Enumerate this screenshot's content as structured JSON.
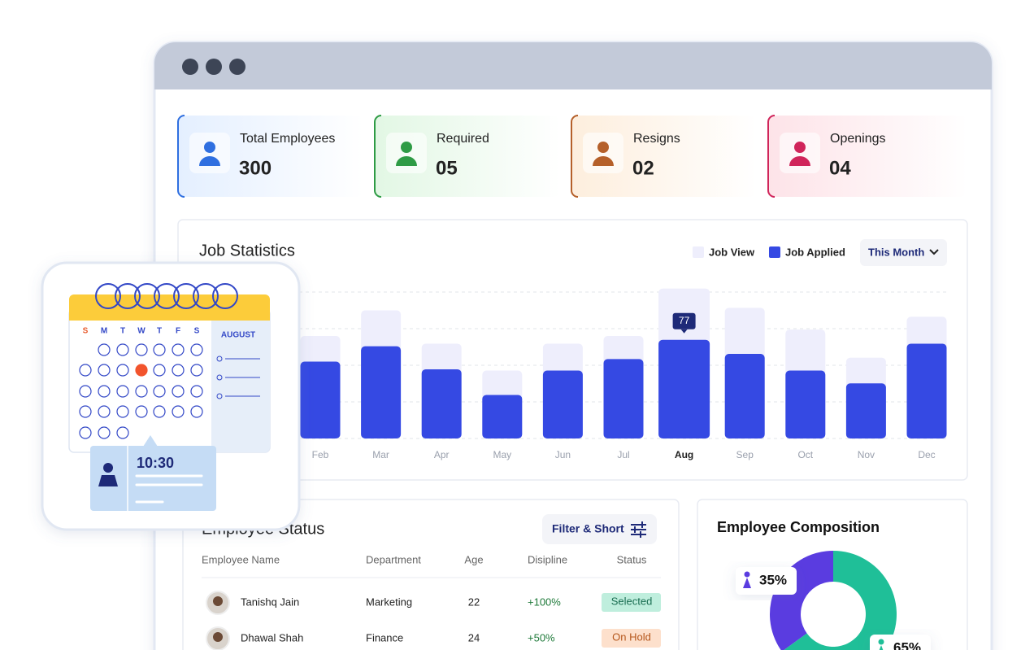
{
  "stats": [
    {
      "label": "Total Employees",
      "value": "300",
      "color": "#2f6fe0",
      "bg": "#e4efff"
    },
    {
      "label": "Required",
      "value": "05",
      "color": "#2e9b45",
      "bg": "#e2f7e4"
    },
    {
      "label": "Resigns",
      "value": "02",
      "color": "#b5602a",
      "bg": "#fdeedd"
    },
    {
      "label": "Openings",
      "value": "04",
      "color": "#d0245a",
      "bg": "#fde3e8"
    }
  ],
  "chart_data": [
    {
      "type": "bar",
      "title": "Job Statistics",
      "period": "This Month",
      "categories": [
        "Feb",
        "Mar",
        "Apr",
        "May",
        "Jun",
        "Jul",
        "Aug",
        "Sep",
        "Oct",
        "Nov",
        "Dec"
      ],
      "series": [
        {
          "name": "Job View",
          "color": "#eeeefc",
          "values": [
            80,
            100,
            74,
            53,
            74,
            80,
            117,
            102,
            85,
            63,
            95
          ]
        },
        {
          "name": "Job Applied",
          "color": "#3549e3",
          "values": [
            60,
            72,
            54,
            34,
            53,
            62,
            77,
            66,
            53,
            43,
            74
          ]
        }
      ],
      "ylim": [
        0,
        120
      ]
    },
    {
      "type": "pie",
      "title": "Employee Composition",
      "values": [
        35,
        65
      ],
      "value_labels": [
        "35%",
        "65%"
      ],
      "colors": [
        "#5a3ce0",
        "#1fbf98"
      ]
    }
  ],
  "table": {
    "title": "Employee Status",
    "button": "Filter & Short",
    "columns": [
      "Employee Name",
      "Department",
      "Age",
      "Disipline",
      "Status"
    ],
    "rows": [
      [
        "Tanishq Jain",
        "Marketing",
        "22",
        "+100%",
        "Selected"
      ],
      [
        "Dhawal Shah",
        "Finance",
        "24",
        "+50%",
        "On Hold"
      ]
    ]
  },
  "calendar": {
    "weekdays": [
      "S",
      "M",
      "T",
      "W",
      "T",
      "F",
      "S"
    ],
    "month": "AUGUST",
    "time": "10:30"
  }
}
